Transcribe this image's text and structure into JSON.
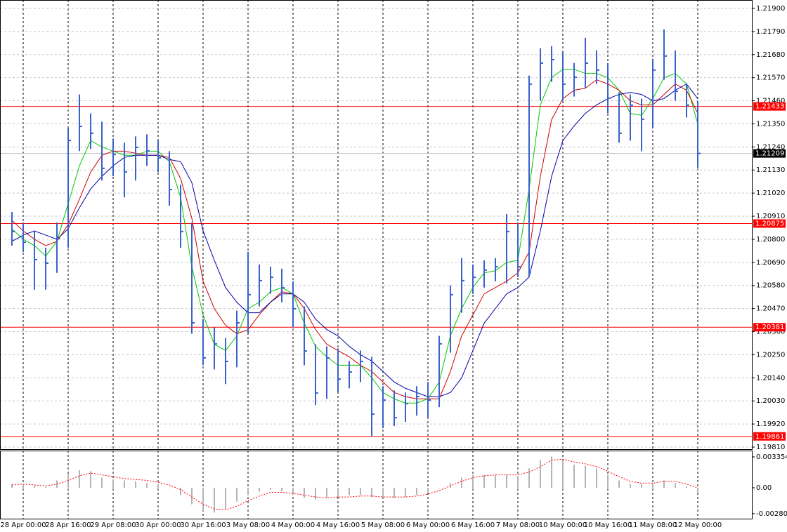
{
  "chart_data": [
    {
      "type": "ohlc",
      "categories": [
        null,
        "28 Apr 00:00",
        null,
        null,
        null,
        "28 Apr 16:00",
        null,
        null,
        null,
        "29 Apr 08:00",
        null,
        null,
        null,
        "30 Apr 00:00",
        null,
        null,
        null,
        "30 Apr 16:00",
        null,
        null,
        null,
        "3 May 08:00",
        null,
        null,
        null,
        "4 May 00:00",
        null,
        null,
        null,
        "4 May 16:00",
        null,
        null,
        null,
        "5 May 08:00",
        null,
        null,
        null,
        "6 May 00:00",
        null,
        null,
        null,
        "6 May 16:00",
        null,
        null,
        null,
        "7 May 08:00",
        null,
        null,
        null,
        "10 May 00:00",
        null,
        null,
        null,
        "10 May 16:00",
        null,
        null,
        null,
        "11 May 08:00",
        null,
        null,
        null,
        "12 May 00:00"
      ],
      "high": [
        1.2093,
        1.2088,
        1.2084,
        1.2076,
        1.2088,
        1.2133,
        1.2149,
        1.214,
        1.2136,
        1.2128,
        1.2126,
        1.2129,
        1.213,
        1.2127,
        1.2122,
        1.2106,
        1.2088,
        1.2042,
        1.2038,
        1.2033,
        1.2046,
        1.2074,
        1.2068,
        1.2067,
        1.2066,
        1.206,
        1.2048,
        1.203,
        1.2029,
        1.2028,
        1.2022,
        1.2027,
        1.2024,
        1.201,
        1.2008,
        1.2007,
        1.201,
        1.2012,
        1.2034,
        1.2058,
        1.2071,
        1.2068,
        1.207,
        1.2071,
        1.2092,
        1.2088,
        1.2158,
        1.2171,
        1.2172,
        1.2169,
        1.2164,
        1.2176,
        1.217,
        1.2164,
        1.215,
        1.2149,
        1.2147,
        1.2166,
        1.218,
        1.217,
        1.2154,
        1.2146
      ],
      "low": [
        1.2077,
        1.2074,
        1.2056,
        1.2056,
        1.2064,
        1.2076,
        1.2122,
        1.2123,
        1.2108,
        1.211,
        1.21,
        1.2108,
        1.2115,
        1.2112,
        1.2096,
        1.2076,
        1.2035,
        1.202,
        1.2018,
        1.2011,
        1.2019,
        1.2035,
        1.2048,
        1.2054,
        1.205,
        1.2038,
        1.202,
        1.2001,
        1.2004,
        1.2007,
        1.2009,
        1.2012,
        1.1986,
        1.199,
        1.1991,
        1.1993,
        1.1996,
        1.1995,
        1.2,
        1.2026,
        1.2045,
        1.2054,
        1.2057,
        1.206,
        1.2059,
        1.2062,
        1.2062,
        1.2146,
        1.2155,
        1.2146,
        1.2148,
        1.2152,
        1.2154,
        1.214,
        1.2126,
        1.2127,
        1.2122,
        1.2133,
        1.2156,
        1.2146,
        1.2138,
        1.2114
      ],
      "close": [
        1.20837,
        1.20786,
        1.20703,
        1.20686,
        1.20803,
        1.21271,
        1.21338,
        1.21305,
        1.21138,
        1.21204,
        1.21121,
        1.21238,
        1.21221,
        1.21188,
        1.21037,
        1.20837,
        1.20402,
        1.20235,
        1.20302,
        1.20218,
        1.20402,
        1.20536,
        1.20603,
        1.20619,
        1.20569,
        1.20469,
        1.20268,
        1.20068,
        1.20235,
        1.20134,
        1.20168,
        1.20218,
        1.19967,
        1.20034,
        1.1995,
        1.20017,
        1.20051,
        1.20034,
        1.20302,
        1.20536,
        1.20603,
        1.20619,
        1.20653,
        1.20669,
        1.20837,
        1.20669,
        1.21539,
        1.21639,
        1.21656,
        1.21539,
        1.21572,
        1.21639,
        1.21606,
        1.21472,
        1.21305,
        1.21439,
        1.21372,
        1.21606,
        1.21673,
        1.21505,
        1.21439,
        1.21209
      ],
      "color": "#3a62cc",
      "series": [
        {
          "color": "#00c800",
          "values": [
            1.2085,
            1.208,
            1.2077,
            1.2072,
            1.2079,
            1.2097,
            1.2115,
            1.2127,
            1.2124,
            1.2122,
            1.212,
            1.212,
            1.2122,
            1.2122,
            1.2117,
            1.21,
            1.2067,
            1.2044,
            1.203,
            1.2027,
            1.2034,
            1.2047,
            1.205,
            1.2055,
            1.2057,
            1.2054,
            1.204,
            1.2029,
            1.2024,
            1.202,
            1.202,
            1.202,
            1.2014,
            1.2007,
            1.2004,
            1.2002,
            1.2002,
            1.2004,
            1.2012,
            1.2034,
            1.2047,
            1.2057,
            1.2064,
            1.2065,
            1.2069,
            1.207,
            1.2104,
            1.2144,
            1.2157,
            1.2161,
            1.2161,
            1.2159,
            1.2159,
            1.2157,
            1.2151,
            1.214,
            1.2139,
            1.2147,
            1.2157,
            1.2159,
            1.2154,
            1.2135
          ]
        },
        {
          "color": "#d00000",
          "values": [
            1.2089,
            1.2084,
            1.208,
            1.2077,
            1.2079,
            1.2087,
            1.2099,
            1.2112,
            1.212,
            1.2122,
            1.2122,
            1.2121,
            1.212,
            1.212,
            1.2119,
            1.2109,
            1.209,
            1.206,
            1.2047,
            1.2039,
            1.2035,
            1.2037,
            1.2044,
            1.205,
            1.2055,
            1.2054,
            1.2047,
            1.2037,
            1.203,
            1.2027,
            1.2024,
            1.202,
            1.2017,
            1.2012,
            1.2007,
            1.2005,
            1.2004,
            1.2004,
            1.2004,
            1.2017,
            1.2034,
            1.2044,
            1.2054,
            1.2057,
            1.206,
            1.2064,
            1.2074,
            1.211,
            1.2137,
            1.2147,
            1.2151,
            1.2152,
            1.2156,
            1.2154,
            1.2151,
            1.2146,
            1.2144,
            1.2144,
            1.2149,
            1.2154,
            1.2151,
            1.214
          ]
        },
        {
          "color": "#0000a8",
          "values": [
            1.2079,
            1.2082,
            1.2084,
            1.2082,
            1.208,
            1.2085,
            1.2095,
            1.2104,
            1.211,
            1.2115,
            1.2119,
            1.212,
            1.212,
            1.212,
            1.2118,
            1.2117,
            1.2107,
            1.2084,
            1.207,
            1.2057,
            1.205,
            1.2045,
            1.2045,
            1.205,
            1.2054,
            1.2054,
            1.205,
            1.2042,
            1.2037,
            1.2034,
            1.2029,
            1.2025,
            1.2022,
            1.2017,
            1.2012,
            1.2009,
            1.2007,
            1.2005,
            1.2005,
            1.2007,
            1.2014,
            1.2027,
            1.204,
            1.2047,
            1.2054,
            1.2057,
            1.2062,
            1.2084,
            1.211,
            1.2127,
            1.2134,
            1.214,
            1.2144,
            1.2147,
            1.2149,
            1.215,
            1.2149,
            1.2146,
            1.2147,
            1.2151,
            1.2154,
            1.2147
          ]
        }
      ],
      "ylim": [
        1.198,
        1.2194
      ],
      "yticks": [
        {
          "value": 1.219,
          "label": "1.21900"
        },
        {
          "value": 1.2179,
          "label": "1.21790"
        },
        {
          "value": 1.2168,
          "label": "1.21680"
        },
        {
          "value": 1.2157,
          "label": "1.21570"
        },
        {
          "value": 1.2146,
          "label": "1.21460"
        },
        {
          "value": 1.2135,
          "label": "1.21350"
        },
        {
          "value": 1.2124,
          "label": "1.21240"
        },
        {
          "value": 1.2113,
          "label": "1.21130"
        },
        {
          "value": 1.2102,
          "label": "1.21020"
        },
        {
          "value": 1.2091,
          "label": "1.20910"
        },
        {
          "value": 1.208,
          "label": "1.20800"
        },
        {
          "value": 1.2069,
          "label": "1.20690"
        },
        {
          "value": 1.2058,
          "label": "1.20580"
        },
        {
          "value": 1.2047,
          "label": "1.20470"
        },
        {
          "value": 1.2036,
          "label": "1.20360"
        },
        {
          "value": 1.2025,
          "label": "1.20250"
        },
        {
          "value": 1.2014,
          "label": "1.20140"
        },
        {
          "value": 1.2003,
          "label": "1.20030"
        },
        {
          "value": 1.1992,
          "label": "1.19920"
        },
        {
          "value": 1.1981,
          "label": "1.19810"
        }
      ],
      "grid": true,
      "hlines": [
        1.21433,
        1.20875,
        1.20381,
        1.19861
      ],
      "hline_color": "#ff0000",
      "last_price": 1.21209
    },
    {
      "type": "macd",
      "histogram": {
        "color": "#b4b4b4",
        "values": [
          0.0004,
          0.0004,
          0.0002,
          0.0001,
          0.0008,
          0.0015,
          0.0019,
          0.0018,
          0.0011,
          0.0009,
          0.0008,
          0.0007,
          0.0005,
          0.0004,
          0,
          -0.0008,
          -0.0018,
          -0.0025,
          -0.0027,
          -0.0023,
          -0.0015,
          -0.0008,
          -0.0004,
          -0.0002,
          -0.0004,
          -0.0008,
          -0.0011,
          -0.0013,
          -0.0011,
          -0.001,
          -0.0008,
          -0.0008,
          -0.001,
          -0.0011,
          -0.0011,
          -0.001,
          -0.0008,
          -0.0005,
          0,
          0.0005,
          0.0011,
          0.0014,
          0.0014,
          0.0014,
          0.0014,
          0.0013,
          0.0021,
          0.003,
          0.0034,
          0.003,
          0.0025,
          0.0024,
          0.0021,
          0.0014,
          0.0008,
          0.0004,
          0.0004,
          0.0005,
          0.0008,
          0.0005,
          0.0002,
          -0.0005
        ]
      },
      "signal": {
        "color": "#ff0000",
        "values": [
          0.0003,
          0.0004,
          0.0003,
          0.0002,
          0.0004,
          0.0008,
          0.0013,
          0.0016,
          0.0014,
          0.0012,
          0.001,
          0.0009,
          0.0008,
          0.0006,
          0.0003,
          -0.0002,
          -0.001,
          -0.0018,
          -0.0023,
          -0.0024,
          -0.002,
          -0.0014,
          -0.0009,
          -0.0005,
          -0.0005,
          -0.0006,
          -0.0008,
          -0.001,
          -0.0011,
          -0.001,
          -0.001,
          -0.0009,
          -0.0009,
          -0.001,
          -0.001,
          -0.001,
          -0.0009,
          -0.0007,
          -0.0003,
          0.0002,
          0.0007,
          0.0011,
          0.0013,
          0.0014,
          0.0014,
          0.0014,
          0.0017,
          0.0023,
          0.003,
          0.0031,
          0.0028,
          0.0026,
          0.0023,
          0.0018,
          0.0012,
          0.0007,
          0.0005,
          0.0005,
          0.0007,
          0.0007,
          0.0004,
          0
        ]
      },
      "ylim": [
        -0.00343,
        0.00396
      ],
      "yticks": [
        0.003354,
        {
          "value": 0,
          "label": "0.00"
        },
        -0.002805
      ]
    }
  ]
}
